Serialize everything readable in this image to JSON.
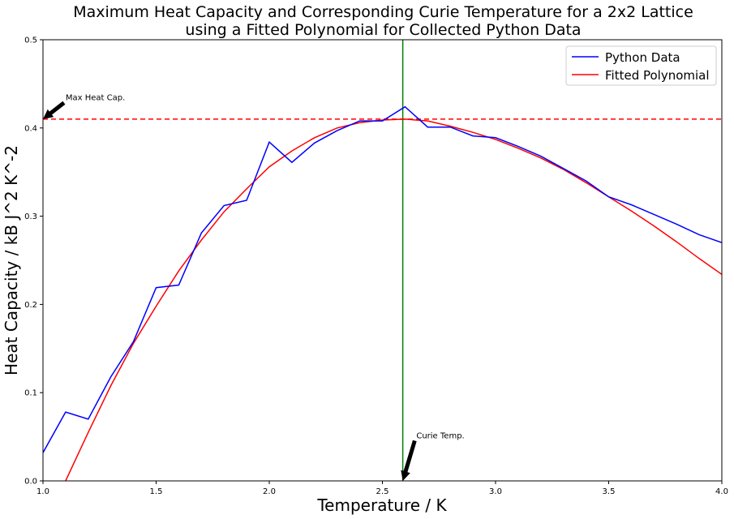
{
  "chart_data": {
    "type": "line",
    "title_line1": "Maximum Heat Capacity and Corresponding Curie Temperature for a 2x2 Lattice",
    "title_line2": "using a Fitted Polynomial for Collected Python Data",
    "xlabel": "Temperature / K",
    "ylabel": "Heat Capacity / kB J^2 K^-2",
    "xlim": [
      1.0,
      4.0
    ],
    "ylim": [
      0.0,
      0.5
    ],
    "xticks": [
      "1.0",
      "1.5",
      "2.0",
      "2.5",
      "3.0",
      "3.5",
      "4.0"
    ],
    "yticks": [
      "0.0",
      "0.1",
      "0.2",
      "0.3",
      "0.4",
      "0.5"
    ],
    "legend_position": "top-right",
    "series": [
      {
        "name": "Python Data",
        "color": "#0000ff",
        "x": [
          1.0,
          1.1,
          1.2,
          1.3,
          1.4,
          1.5,
          1.6,
          1.7,
          1.8,
          1.9,
          2.0,
          2.1,
          2.2,
          2.3,
          2.4,
          2.5,
          2.6,
          2.7,
          2.8,
          2.9,
          3.0,
          3.1,
          3.2,
          3.3,
          3.4,
          3.5,
          3.6,
          3.7,
          3.8,
          3.9,
          4.0
        ],
        "y": [
          0.032,
          0.078,
          0.07,
          0.118,
          0.158,
          0.219,
          0.222,
          0.281,
          0.312,
          0.318,
          0.384,
          0.361,
          0.383,
          0.397,
          0.408,
          0.408,
          0.424,
          0.401,
          0.401,
          0.391,
          0.389,
          0.379,
          0.368,
          0.354,
          0.34,
          0.322,
          0.313,
          0.302,
          0.291,
          0.279,
          0.27
        ]
      },
      {
        "name": "Fitted Polynomial",
        "color": "#ff0000",
        "x": [
          1.1,
          1.2,
          1.3,
          1.4,
          1.5,
          1.6,
          1.7,
          1.8,
          1.9,
          2.0,
          2.1,
          2.2,
          2.3,
          2.4,
          2.5,
          2.6,
          2.7,
          2.8,
          2.9,
          3.0,
          3.1,
          3.2,
          3.3,
          3.4,
          3.5,
          3.6,
          3.7,
          3.8,
          3.9,
          4.0
        ],
        "y": [
          0.0,
          0.055,
          0.108,
          0.156,
          0.198,
          0.238,
          0.273,
          0.305,
          0.331,
          0.356,
          0.374,
          0.389,
          0.4,
          0.406,
          0.409,
          0.41,
          0.408,
          0.402,
          0.395,
          0.387,
          0.377,
          0.366,
          0.353,
          0.338,
          0.322,
          0.306,
          0.289,
          0.271,
          0.252,
          0.234
        ]
      }
    ],
    "hline": {
      "y": 0.41,
      "color": "#ff0000",
      "style": "dashed"
    },
    "vline": {
      "x": 2.59,
      "color": "#008000"
    },
    "annotations": [
      {
        "text": "Max Heat Cap.",
        "point": [
          1.0,
          0.41
        ],
        "text_at": [
          1.1,
          0.435
        ]
      },
      {
        "text": "Curie Temp.",
        "point": [
          2.59,
          0.0
        ],
        "text_at": [
          2.65,
          0.052
        ]
      }
    ]
  }
}
